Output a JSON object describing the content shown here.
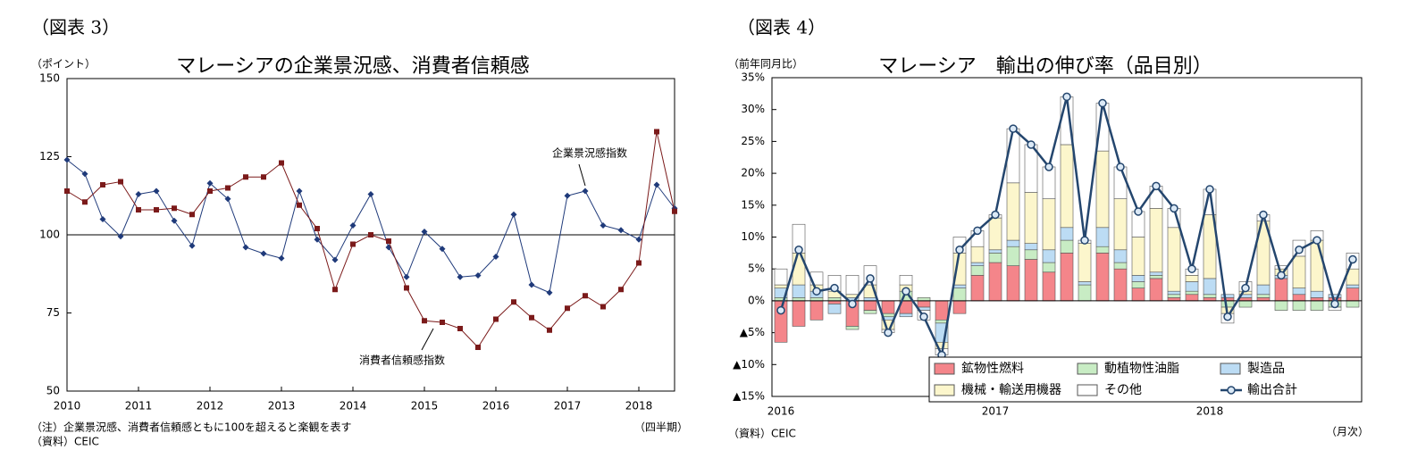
{
  "chart_data": [
    {
      "type": "line",
      "figure_label": "（図表 3）",
      "title": "マレーシアの企業景況感、消費者信頼感",
      "y_unit_label": "（ポイント）",
      "notes": [
        "（注）企業景況感、消費者信頼感ともに100を超えると楽観を表す",
        "（資料）CEIC"
      ],
      "x_unit_label": "（四半期）",
      "categories": [
        "2010",
        null,
        null,
        null,
        "2011",
        null,
        null,
        null,
        "2012",
        null,
        null,
        null,
        "2013",
        null,
        null,
        null,
        "2014",
        null,
        null,
        null,
        "2015",
        null,
        null,
        null,
        "2016",
        null,
        null,
        null,
        "2017",
        null,
        null,
        null,
        "2018",
        null,
        null
      ],
      "series": [
        {
          "name": "企業景況感指数",
          "color": "#1f3a7a",
          "marker": "diamond",
          "values": [
            124,
            119.5,
            105,
            99.5,
            113,
            114,
            104.5,
            96.5,
            116.5,
            111.5,
            96,
            94,
            92.5,
            114,
            98.5,
            92,
            103,
            113,
            96,
            86.5,
            101,
            95.5,
            86.5,
            87,
            93,
            106.5,
            84,
            81.5,
            112.5,
            114,
            103,
            101.5,
            98.5,
            116,
            108.5
          ]
        },
        {
          "name": "消費者信頼感指数",
          "color": "#7b1a1a",
          "marker": "square",
          "values": [
            114,
            110.5,
            116,
            117,
            108,
            108,
            108.5,
            106.5,
            114,
            115,
            118.5,
            118.5,
            123,
            109.5,
            102,
            82.5,
            97,
            100,
            98,
            83,
            72.5,
            72,
            70,
            64,
            73,
            78.5,
            73.5,
            69.5,
            76.5,
            80.5,
            77,
            82.5,
            91,
            133,
            107.5
          ]
        }
      ],
      "ylim": [
        50,
        150
      ],
      "yticks": [
        50,
        75,
        100,
        125,
        150
      ],
      "reference_line": 100
    },
    {
      "type": "bar",
      "stacked": true,
      "figure_label": "（図表 4）",
      "title": "マレーシア　輸出の伸び率（品目別）",
      "y_unit_label": "（前年同月比）",
      "notes": [
        "（資料）CEIC"
      ],
      "x_unit_label": "（月次）",
      "legend": "lower right",
      "categories": [
        "2016",
        null,
        null,
        null,
        null,
        null,
        null,
        null,
        null,
        null,
        null,
        null,
        "2017",
        null,
        null,
        null,
        null,
        null,
        null,
        null,
        null,
        null,
        null,
        null,
        "2018",
        null,
        null,
        null,
        null,
        null,
        null,
        null,
        null
      ],
      "series": [
        {
          "name": "鉱物性燃料",
          "color": "#f4858a",
          "values": [
            -6.5,
            -4,
            -3,
            -0.5,
            -4,
            -1.5,
            -2,
            -2,
            -1,
            -3,
            -2,
            4,
            6,
            5.5,
            6.5,
            4.5,
            7.5,
            0,
            7.5,
            5,
            2,
            3.5,
            0.5,
            1,
            0.5,
            0.5,
            0.5,
            0.5,
            3.5,
            1,
            0.5,
            0.5,
            2
          ]
        },
        {
          "name": "動植物性油脂",
          "color": "#c8ecc4",
          "values": [
            0.5,
            0.5,
            0.5,
            0.5,
            -0.5,
            -0.5,
            -0.5,
            1.5,
            0.5,
            -0.5,
            2,
            1.5,
            1.5,
            3,
            1.5,
            1.5,
            2,
            2.5,
            1,
            1,
            1,
            0.5,
            0.5,
            0.5,
            0.5,
            -1,
            -1,
            0.5,
            -1.5,
            -1.5,
            -1.5,
            -1,
            -1
          ]
        },
        {
          "name": "製造品",
          "color": "#bcdcf4",
          "values": [
            1.5,
            2,
            1,
            -1.5,
            0.5,
            0.5,
            -0.5,
            -0.5,
            -0.5,
            -3,
            0.5,
            0.5,
            0.5,
            1,
            1,
            2,
            2,
            0.5,
            3,
            2,
            1,
            0.5,
            0.5,
            1.5,
            2.5,
            0.5,
            0.5,
            1.5,
            0.5,
            1,
            1,
            0.5,
            0.5
          ]
        },
        {
          "name": "機械・輸送用機器",
          "color": "#fcf6cc",
          "values": [
            0.5,
            5,
            1,
            1,
            0.5,
            2,
            -1.5,
            1,
            0,
            -1,
            5,
            2.5,
            5,
            9,
            8,
            8,
            13,
            6,
            12,
            8,
            6,
            10,
            10,
            1,
            10,
            -1,
            0.5,
            10,
            1,
            5,
            8,
            0,
            2.5
          ]
        },
        {
          "name": "その他",
          "color": "#ffffff",
          "values": [
            2.5,
            4.5,
            2,
            2.5,
            3,
            3,
            -0.5,
            1.5,
            -1.5,
            -1,
            2.5,
            2.5,
            0.5,
            8.5,
            7.5,
            5,
            7.5,
            0.5,
            7.5,
            5,
            4,
            3.5,
            3,
            1,
            4,
            -1.5,
            1.5,
            1,
            0.5,
            2.5,
            1.5,
            -0.5,
            2.5
          ]
        },
        {
          "name": "輸出合計",
          "color": "#24466e",
          "type": "line",
          "marker": "circle",
          "values": [
            -1.5,
            8,
            1.5,
            2,
            -0.5,
            3.5,
            -5,
            1.5,
            -2.5,
            -8.5,
            8,
            11,
            13.5,
            27,
            24.5,
            21,
            32,
            9.5,
            31,
            21,
            14,
            18,
            14.5,
            5,
            17.5,
            -2.5,
            2,
            13.5,
            4,
            8,
            9.5,
            -0.5,
            6.5
          ]
        }
      ],
      "ylim": [
        -15,
        35
      ],
      "yticks": [
        {
          "value": -15,
          "label": "▲15%"
        },
        {
          "value": -10,
          "label": "▲10%"
        },
        {
          "value": -5,
          "label": "▲5%"
        },
        {
          "value": 0,
          "label": "0%"
        },
        {
          "value": 5,
          "label": "5%"
        },
        {
          "value": 10,
          "label": "10%"
        },
        {
          "value": 15,
          "label": "15%"
        },
        {
          "value": 20,
          "label": "20%"
        },
        {
          "value": 25,
          "label": "25%"
        },
        {
          "value": 30,
          "label": "30%"
        },
        {
          "value": 35,
          "label": "35%"
        }
      ]
    }
  ]
}
